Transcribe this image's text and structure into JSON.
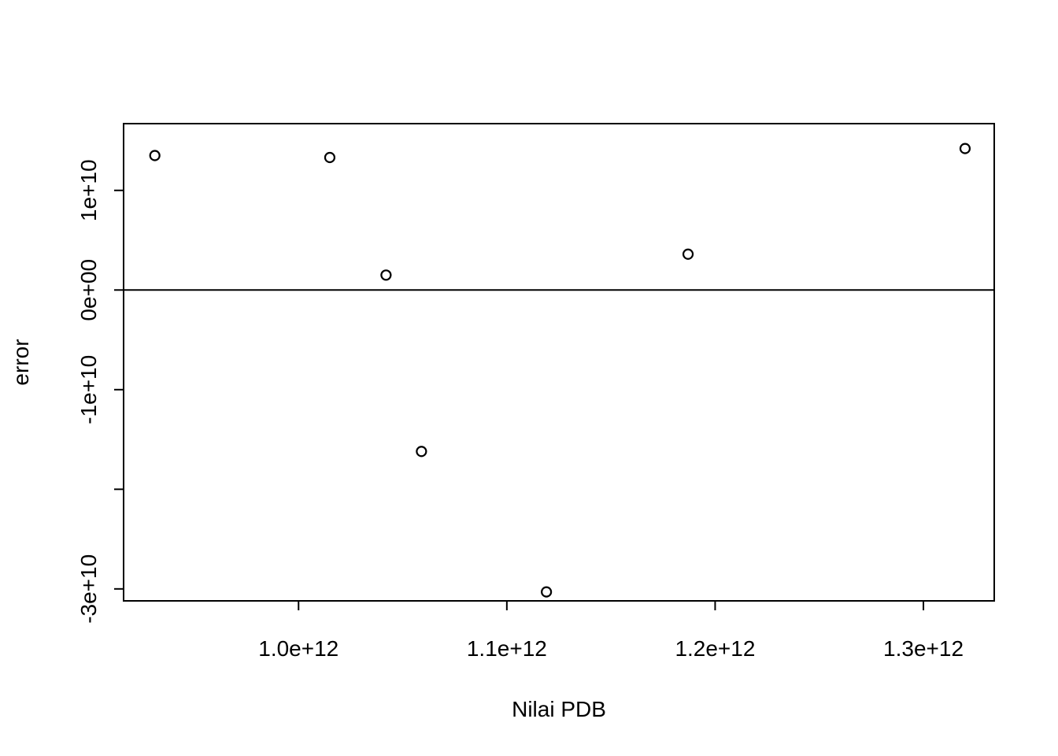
{
  "chart_data": {
    "type": "scatter",
    "title": "",
    "xlabel": "Nilai PDB",
    "ylabel": "error",
    "xlim": [
      916000000000,
      1334000000000
    ],
    "ylim": [
      -31200000000,
      16700000000
    ],
    "x_ticks": [
      {
        "value": 1000000000000,
        "label": "1.0e+12"
      },
      {
        "value": 1100000000000,
        "label": "1.1e+12"
      },
      {
        "value": 1200000000000,
        "label": "1.2e+12"
      },
      {
        "value": 1300000000000,
        "label": "1.3e+12"
      }
    ],
    "y_ticks": [
      {
        "value": -30000000000,
        "label": "-3e+10"
      },
      {
        "value": -20000000000,
        "label": ""
      },
      {
        "value": -10000000000,
        "label": "-1e+10"
      },
      {
        "value": 0,
        "label": "0e+00"
      },
      {
        "value": 10000000000,
        "label": "1e+10"
      }
    ],
    "hline": 0,
    "grid": false,
    "points": [
      {
        "x": 931000000000,
        "y": 13500000000
      },
      {
        "x": 1015000000000,
        "y": 13300000000
      },
      {
        "x": 1042000000000,
        "y": 1500000000
      },
      {
        "x": 1059000000000,
        "y": -16200000000
      },
      {
        "x": 1119000000000,
        "y": -30300000000
      },
      {
        "x": 1187000000000,
        "y": 3600000000
      },
      {
        "x": 1320000000000,
        "y": 14200000000
      }
    ]
  }
}
